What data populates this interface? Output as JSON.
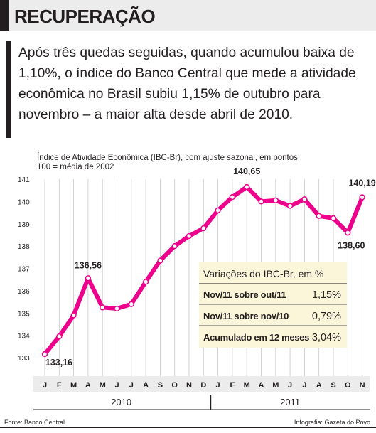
{
  "header": {
    "title": "RECUPERAÇÃO"
  },
  "intro": {
    "text": "Após três quedas seguidas, quando acumulou baixa de 1,10%, o índice do Banco Central que mede a atividade econômica no Brasil subiu 1,15% de outubro para novembro – a maior alta desde abril de 2010."
  },
  "chart_data": {
    "type": "line",
    "title": "Índice de Atividade Econômica (IBC-Br), com ajuste sazonal, em pontos",
    "subtitle": "100 = média de 2002",
    "categories": [
      "J",
      "F",
      "M",
      "A",
      "M",
      "J",
      "J",
      "A",
      "S",
      "O",
      "N",
      "D",
      "J",
      "F",
      "M",
      "A",
      "M",
      "J",
      "J",
      "A",
      "S",
      "O",
      "N"
    ],
    "years": [
      {
        "label": "2010",
        "months": 12
      },
      {
        "label": "2011",
        "months": 11
      }
    ],
    "series": [
      {
        "values": [
          133.16,
          133.95,
          134.9,
          136.56,
          135.25,
          135.2,
          135.4,
          136.4,
          137.35,
          138.0,
          138.45,
          138.8,
          139.6,
          140.2,
          140.65,
          140.0,
          140.05,
          139.8,
          140.1,
          139.35,
          139.25,
          138.6,
          140.19
        ],
        "color": "#ec008c"
      }
    ],
    "labeled_points": [
      {
        "index": 0,
        "label": "133,16"
      },
      {
        "index": 3,
        "label": "136,56"
      },
      {
        "index": 14,
        "label": "140,65"
      },
      {
        "index": 21,
        "label": "138,60"
      },
      {
        "index": 22,
        "label": "140,19"
      }
    ],
    "ylim": [
      133,
      141
    ],
    "yticks": [
      133,
      134,
      135,
      136,
      137,
      138,
      139,
      140,
      141
    ],
    "grid": "vertical",
    "inset_table": {
      "title": "Variações do IBC-Br, em %",
      "rows": [
        {
          "label": "Nov/11 sobre out/11",
          "value": "1,15%"
        },
        {
          "label": "Nov/11 sobre nov/10",
          "value": "0,79%"
        },
        {
          "label": "Acumulado em 12 meses",
          "value": "3,04%"
        }
      ]
    }
  },
  "footer": {
    "source": "Fonte: Banco Central.",
    "credit": "Infografia: Gazeta do Povo"
  }
}
